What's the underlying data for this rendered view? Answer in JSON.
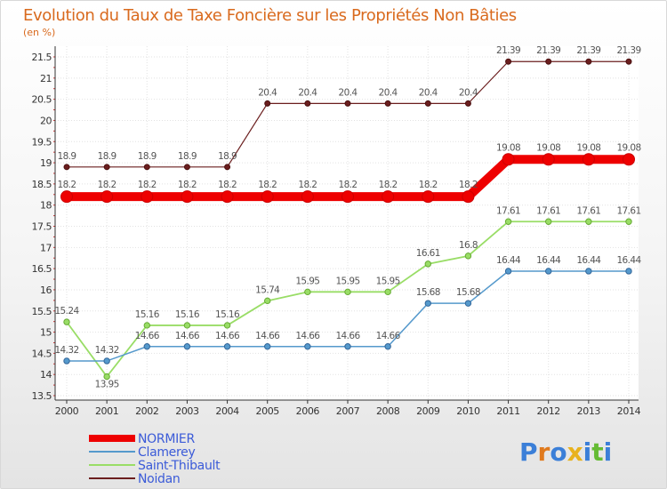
{
  "chart_data": {
    "type": "line",
    "title": "Evolution du Taux de Taxe Foncière sur les Propriétés Non Bâties",
    "ylabel": "(en %)",
    "xlabel": "",
    "ylim": [
      13.5,
      21.5
    ],
    "yticks": [
      "13.5",
      "14",
      "14.5",
      "15",
      "15.5",
      "16",
      "16.5",
      "17",
      "17.5",
      "18",
      "18.5",
      "19",
      "19.5",
      "20",
      "20.5",
      "21",
      "21.5"
    ],
    "categories": [
      "2000",
      "2001",
      "2002",
      "2003",
      "2004",
      "2005",
      "2006",
      "2007",
      "2008",
      "2009",
      "2010",
      "2011",
      "2012",
      "2013",
      "2014"
    ],
    "series": [
      {
        "name": "Noidan",
        "color": "#6b1e1e",
        "values": [
          18.9,
          18.9,
          18.9,
          18.9,
          18.9,
          20.4,
          20.4,
          20.4,
          20.4,
          20.4,
          20.4,
          21.39,
          21.39,
          21.39,
          21.39
        ],
        "labels": [
          "18.9",
          "18.9",
          "18.9",
          "18.9",
          "18.9",
          "20.4",
          "20.4",
          "20.4",
          "20.4",
          "20.4",
          "20.4",
          "21.39",
          "21.39",
          "21.39",
          "21.39"
        ]
      },
      {
        "name": "NORMIER",
        "color": "#ee0000",
        "values": [
          18.2,
          18.2,
          18.2,
          18.2,
          18.2,
          18.2,
          18.2,
          18.2,
          18.2,
          18.2,
          18.2,
          19.08,
          19.08,
          19.08,
          19.08
        ],
        "labels": [
          "18.2",
          "18.2",
          "18.2",
          "18.2",
          "18.2",
          "18.2",
          "18.2",
          "18.2",
          "18.2",
          "18.2",
          "18.2",
          "19.08",
          "19.08",
          "19.08",
          "19.08"
        ]
      },
      {
        "name": "Saint-Thibault",
        "color": "#99dd66",
        "values": [
          15.24,
          13.95,
          15.16,
          15.16,
          15.16,
          15.74,
          15.95,
          15.95,
          15.95,
          16.61,
          16.8,
          17.61,
          17.61,
          17.61,
          17.61
        ],
        "labels": [
          "15.24",
          "13.95",
          "15.16",
          "15.16",
          "15.16",
          "15.74",
          "15.95",
          "15.95",
          "15.95",
          "16.61",
          "16.8",
          "17.61",
          "17.61",
          "17.61",
          "17.61"
        ]
      },
      {
        "name": "Clamerey",
        "color": "#5599cc",
        "values": [
          14.32,
          14.32,
          14.66,
          14.66,
          14.66,
          14.66,
          14.66,
          14.66,
          14.66,
          15.68,
          15.68,
          16.44,
          16.44,
          16.44,
          16.44
        ],
        "labels": [
          "14.32",
          "14.32",
          "14.66",
          "14.66",
          "14.66",
          "14.66",
          "14.66",
          "14.66",
          "14.66",
          "15.68",
          "15.68",
          "16.44",
          "16.44",
          "16.44",
          "16.44"
        ]
      }
    ],
    "legend": [
      "NORMIER",
      "Clamerey",
      "Saint-Thibault",
      "Noidan"
    ]
  },
  "logo": {
    "text": "Proxiti"
  }
}
